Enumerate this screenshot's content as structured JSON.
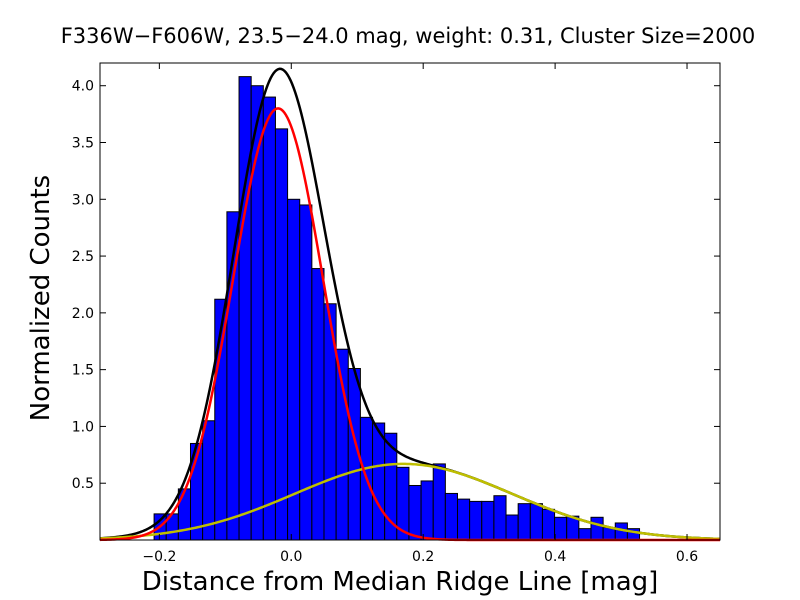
{
  "chart_data": {
    "type": "bar",
    "title": "F336W−F606W, 23.5−24.0 mag, weight: 0.31, Cluster Size=2000",
    "xlabel": "Distance from Median Ridge Line [mag]",
    "ylabel": "Normalized Counts",
    "xlim": [
      -0.29,
      0.65
    ],
    "ylim": [
      0.0,
      4.2
    ],
    "xticks": [
      -0.2,
      0.0,
      0.2,
      0.4,
      0.6
    ],
    "xtick_labels": [
      "−0.2",
      "0.0",
      "0.2",
      "0.4",
      "0.6"
    ],
    "yticks": [
      0.5,
      1.0,
      1.5,
      2.0,
      2.5,
      3.0,
      3.5,
      4.0
    ],
    "ytick_labels": [
      "0.5",
      "1.0",
      "1.5",
      "2.0",
      "2.5",
      "3.0",
      "3.5",
      "4.0"
    ],
    "bin_width": 0.0184,
    "bin_start": -0.208,
    "histogram_values": [
      0.23,
      0.23,
      0.45,
      0.85,
      1.05,
      2.12,
      2.89,
      4.08,
      4.0,
      3.9,
      3.62,
      3.0,
      2.95,
      2.39,
      2.08,
      1.68,
      1.51,
      1.08,
      1.03,
      0.94,
      0.64,
      0.48,
      0.52,
      0.67,
      0.41,
      0.36,
      0.34,
      0.34,
      0.39,
      0.22,
      0.32,
      0.32,
      0.27,
      0.2,
      0.21,
      0.1,
      0.2,
      0.11,
      0.15,
      0.1
    ],
    "histogram_color": "#0000ff",
    "series": [
      {
        "kind": "curve",
        "color": "#ff0000",
        "amplitude": 3.8,
        "mean": -0.02,
        "sigma": 0.068
      },
      {
        "kind": "curve",
        "color": "#bfbf00",
        "amplitude": 0.67,
        "mean": 0.17,
        "sigma": 0.165
      },
      {
        "kind": "curve",
        "color": "#000000",
        "components": "sum"
      }
    ],
    "grid": false,
    "legend": "none"
  }
}
